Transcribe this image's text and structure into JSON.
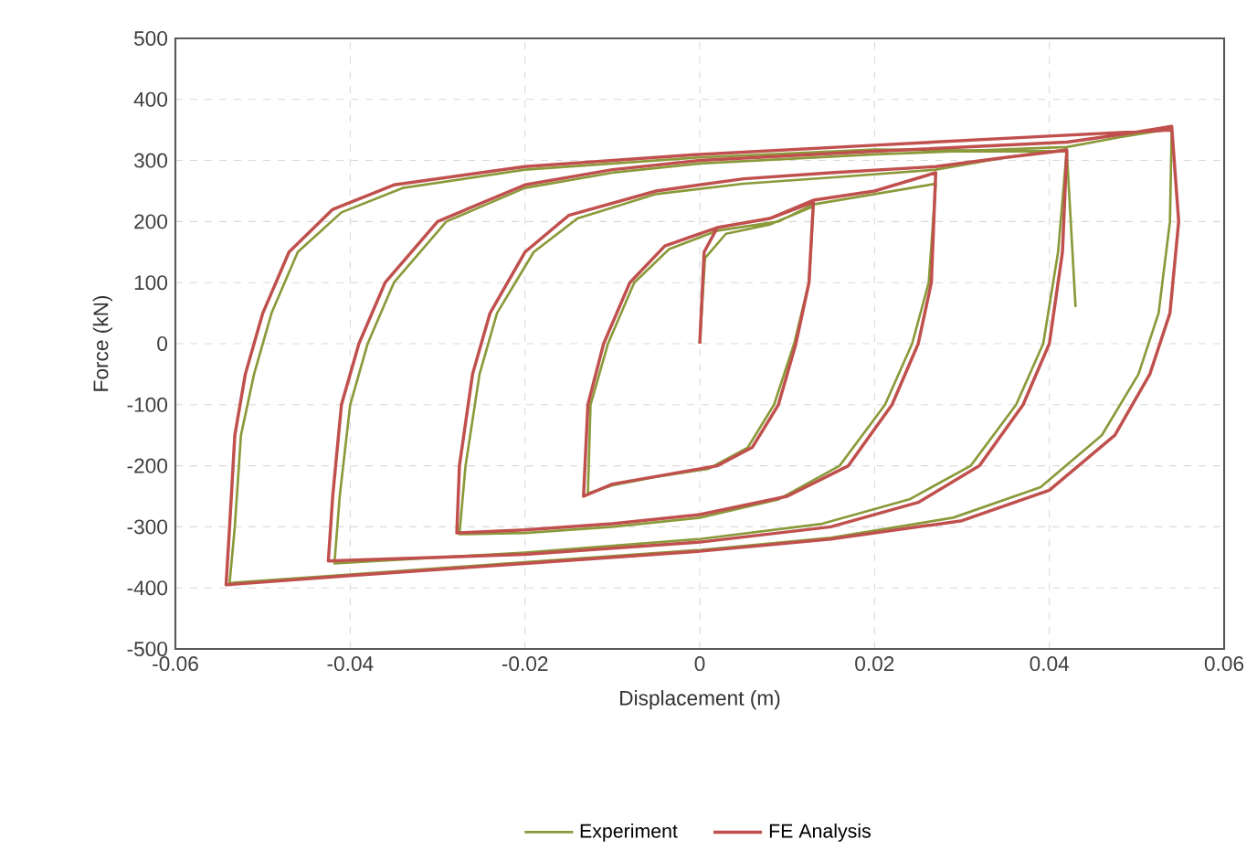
{
  "chart_data": {
    "type": "line",
    "xlabel": "Displacement (m)",
    "ylabel": "Force (kN)",
    "xlim": [
      -0.06,
      0.06
    ],
    "xticks": [
      -0.06,
      -0.04,
      -0.02,
      0,
      0.02,
      0.04,
      0.06
    ],
    "ylim": [
      -500,
      500
    ],
    "yticks": [
      -500,
      -400,
      -300,
      -200,
      -100,
      0,
      100,
      200,
      300,
      400,
      500
    ],
    "grid": true,
    "legend": "bottom",
    "series": [
      {
        "name": "Experiment",
        "color": "#8a9a3a",
        "x": [
          0,
          0.0006,
          0.003,
          0.008,
          0.013,
          0.0125,
          0.0108,
          0.0085,
          0.0055,
          0.001,
          -0.005,
          -0.01,
          -0.0128,
          -0.0125,
          -0.0105,
          -0.0075,
          -0.0035,
          0.002,
          0.009,
          0.013,
          0.02,
          0.027,
          0.0262,
          0.0243,
          0.0212,
          0.016,
          0.009,
          0.0,
          -0.01,
          -0.02,
          -0.0275,
          -0.0268,
          -0.0252,
          -0.0232,
          -0.019,
          -0.014,
          -0.005,
          0.005,
          0.015,
          0.027,
          0.035,
          0.042,
          0.041,
          0.0393,
          0.0362,
          0.031,
          0.024,
          0.014,
          0.0,
          -0.02,
          -0.0418,
          -0.0412,
          -0.04,
          -0.038,
          -0.035,
          -0.029,
          -0.02,
          -0.01,
          0.0,
          0.02,
          0.042,
          0.048,
          0.054,
          0.0538,
          0.0525,
          0.0502,
          0.046,
          0.039,
          0.029,
          0.015,
          0.0,
          -0.02,
          -0.04,
          -0.0538,
          -0.0532,
          -0.0525,
          -0.051,
          -0.049,
          -0.046,
          -0.041,
          -0.034,
          -0.02,
          0.0,
          0.02,
          0.042,
          0.043
        ],
        "values": [
          0,
          140,
          180,
          195,
          225,
          100,
          0,
          -100,
          -170,
          -205,
          -218,
          -232,
          -245,
          -100,
          0,
          100,
          155,
          185,
          200,
          228,
          245,
          262,
          100,
          0,
          -100,
          -200,
          -255,
          -285,
          -300,
          -310,
          -312,
          -200,
          -50,
          50,
          150,
          205,
          245,
          262,
          272,
          285,
          305,
          318,
          150,
          0,
          -100,
          -200,
          -255,
          -295,
          -320,
          -342,
          -360,
          -250,
          -100,
          0,
          100,
          200,
          255,
          280,
          295,
          310,
          322,
          338,
          352,
          200,
          50,
          -50,
          -150,
          -235,
          -285,
          -318,
          -338,
          -358,
          -378,
          -392,
          -300,
          -150,
          -50,
          50,
          150,
          215,
          255,
          285,
          305,
          318,
          315,
          60
        ]
      },
      {
        "name": "FE Analysis",
        "color": "#c0504d",
        "x": [
          0,
          0.0005,
          0.002,
          0.008,
          0.013,
          0.0125,
          0.011,
          0.009,
          0.006,
          0.002,
          -0.004,
          -0.01,
          -0.0133,
          -0.0128,
          -0.011,
          -0.008,
          -0.004,
          0.002,
          0.008,
          0.013,
          0.02,
          0.027,
          0.0265,
          0.025,
          0.022,
          0.017,
          0.01,
          0.0,
          -0.01,
          -0.02,
          -0.0278,
          -0.0275,
          -0.026,
          -0.024,
          -0.02,
          -0.015,
          -0.005,
          0.005,
          0.015,
          0.027,
          0.035,
          0.042,
          0.0415,
          0.04,
          0.037,
          0.032,
          0.025,
          0.015,
          0.0,
          -0.02,
          -0.0425,
          -0.042,
          -0.041,
          -0.039,
          -0.036,
          -0.03,
          -0.02,
          -0.01,
          0.0,
          0.02,
          0.042,
          0.048,
          0.054,
          0.0548,
          0.0538,
          0.0515,
          0.0475,
          0.04,
          0.03,
          0.015,
          0.0,
          -0.02,
          -0.04,
          -0.0542,
          -0.0538,
          -0.0532,
          -0.052,
          -0.05,
          -0.047,
          -0.042,
          -0.035,
          -0.02,
          0.0,
          0.02,
          0.04,
          0.054
        ],
        "values": [
          0,
          150,
          190,
          205,
          232,
          100,
          0,
          -100,
          -170,
          -200,
          -215,
          -230,
          -250,
          -100,
          0,
          100,
          160,
          190,
          205,
          235,
          250,
          280,
          100,
          0,
          -100,
          -200,
          -250,
          -280,
          -295,
          -305,
          -310,
          -200,
          -50,
          50,
          150,
          210,
          250,
          270,
          280,
          290,
          305,
          317,
          150,
          0,
          -100,
          -200,
          -260,
          -300,
          -325,
          -345,
          -356,
          -250,
          -100,
          0,
          100,
          200,
          260,
          285,
          300,
          315,
          330,
          342,
          356,
          200,
          50,
          -50,
          -150,
          -240,
          -290,
          -320,
          -340,
          -360,
          -380,
          -395,
          -300,
          -150,
          -50,
          50,
          150,
          220,
          260,
          290,
          310,
          325,
          340,
          350
        ]
      }
    ]
  }
}
